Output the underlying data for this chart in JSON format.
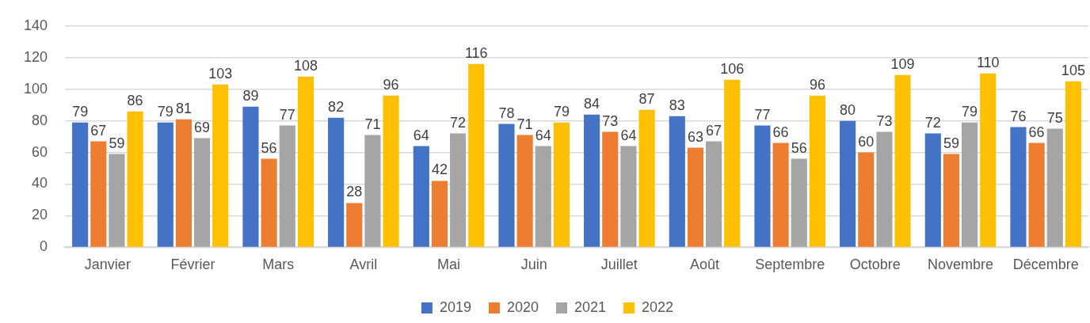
{
  "chart_data": {
    "type": "bar",
    "categories": [
      "Janvier",
      "Février",
      "Mars",
      "Avril",
      "Mai",
      "Juin",
      "Juillet",
      "Août",
      "Septembre",
      "Octobre",
      "Novembre",
      "Décembre"
    ],
    "series": [
      {
        "name": "2019",
        "color": "#4472c4",
        "values": [
          79,
          79,
          89,
          82,
          64,
          78,
          84,
          83,
          77,
          80,
          72,
          76
        ]
      },
      {
        "name": "2020",
        "color": "#ed7d31",
        "values": [
          67,
          81,
          56,
          28,
          42,
          71,
          73,
          63,
          66,
          60,
          59,
          66
        ]
      },
      {
        "name": "2021",
        "color": "#a5a5a5",
        "values": [
          59,
          69,
          77,
          71,
          72,
          64,
          64,
          67,
          56,
          73,
          79,
          75
        ]
      },
      {
        "name": "2022",
        "color": "#ffc000",
        "values": [
          86,
          103,
          108,
          96,
          116,
          79,
          87,
          106,
          96,
          109,
          110,
          105
        ]
      }
    ],
    "ylim": [
      0,
      140
    ],
    "yticks": [
      0,
      20,
      40,
      60,
      80,
      100,
      120,
      140
    ],
    "grid": "y",
    "legend": "bottom",
    "data_labels": true
  }
}
